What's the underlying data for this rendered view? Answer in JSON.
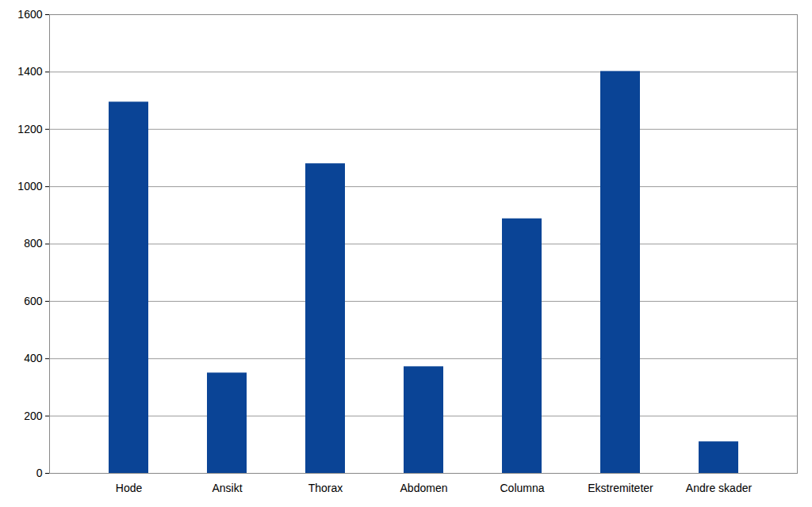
{
  "chart_data": {
    "type": "bar",
    "categories": [
      "Hode",
      "Ansikt",
      "Thorax",
      "Abdomen",
      "Columna",
      "Ekstremiteter",
      "Andre skader"
    ],
    "values": [
      1295,
      350,
      1080,
      372,
      888,
      1402,
      110
    ],
    "color": "#0a4496",
    "ylim": [
      0,
      1600
    ],
    "yticks": [
      0,
      200,
      400,
      600,
      800,
      1000,
      1200,
      1400,
      1600
    ],
    "grid": true
  }
}
